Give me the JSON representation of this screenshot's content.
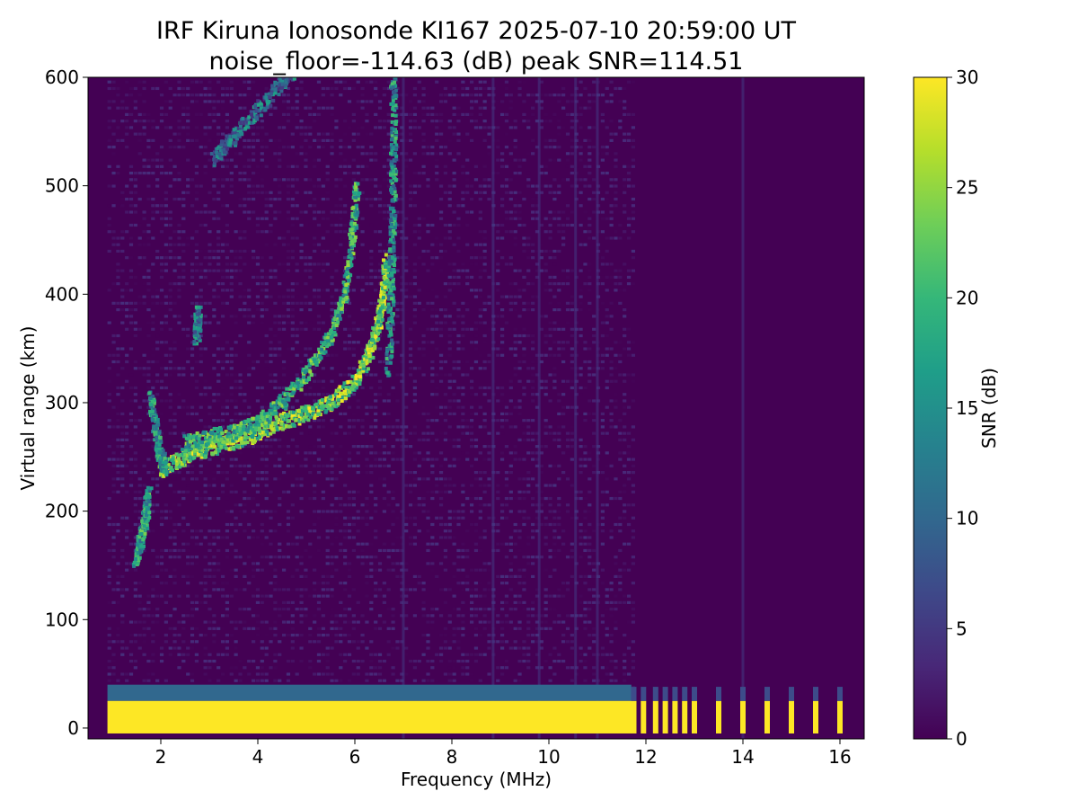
{
  "chart_data": {
    "type": "heatmap",
    "title_line1": "IRF Kiruna Ionosonde KI167 2025-07-10 20:59:00  UT",
    "title_line2": "noise_floor=-114.63 (dB) peak SNR=114.51",
    "xlabel": "Frequency (MHz)",
    "ylabel": "Virtual range (km)",
    "colorbar_label": "SNR (dB)",
    "xlim": [
      0.5,
      16.5
    ],
    "ylim": [
      -10,
      600
    ],
    "x_ticks": [
      2,
      4,
      6,
      8,
      10,
      12,
      14,
      16
    ],
    "x_tick_labels": [
      "2",
      "4",
      "6",
      "8",
      "10",
      "12",
      "14",
      "16"
    ],
    "y_ticks": [
      0,
      100,
      200,
      300,
      400,
      500,
      600
    ],
    "y_tick_labels": [
      "0",
      "100",
      "200",
      "300",
      "400",
      "500",
      "600"
    ],
    "clim": [
      0,
      30
    ],
    "colorbar_ticks": [
      0,
      5,
      10,
      15,
      20,
      25,
      30
    ],
    "colorbar_tick_labels": [
      "0",
      "5",
      "10",
      "15",
      "20",
      "25",
      "30"
    ],
    "colormap": "viridis",
    "colormap_stops": [
      "#440154",
      "#482878",
      "#3e4989",
      "#31688e",
      "#26828e",
      "#1f9e89",
      "#35b779",
      "#6ece58",
      "#b5de2b",
      "#fde725"
    ],
    "background_color": "#440154",
    "data_freq_range": [
      0.9,
      16.1
    ],
    "grid": false,
    "traces": [
      {
        "name_hint": "F-region O trace",
        "snr": 30,
        "points": [
          [
            2.0,
            238
          ],
          [
            2.5,
            250
          ],
          [
            3.0,
            258
          ],
          [
            3.5,
            264
          ],
          [
            4.0,
            272
          ],
          [
            4.5,
            282
          ],
          [
            5.0,
            290
          ],
          [
            5.5,
            300
          ],
          [
            6.0,
            318
          ],
          [
            6.3,
            345
          ],
          [
            6.5,
            375
          ],
          [
            6.6,
            400
          ],
          [
            6.65,
            430
          ]
        ]
      },
      {
        "name_hint": "F-region X trace",
        "snr": 26,
        "points": [
          [
            2.5,
            262
          ],
          [
            3.0,
            268
          ],
          [
            3.5,
            272
          ],
          [
            4.0,
            282
          ],
          [
            4.5,
            300
          ],
          [
            5.0,
            325
          ],
          [
            5.5,
            360
          ],
          [
            5.8,
            400
          ],
          [
            5.95,
            450
          ],
          [
            6.05,
            500
          ]
        ]
      },
      {
        "name_hint": "F-region outer trace",
        "snr": 22,
        "points": [
          [
            6.7,
            330
          ],
          [
            6.75,
            400
          ],
          [
            6.78,
            460
          ],
          [
            6.8,
            520
          ],
          [
            6.8,
            600
          ]
        ]
      },
      {
        "name_hint": "Lower cusp",
        "snr": 22,
        "points": [
          [
            1.8,
            305
          ],
          [
            1.9,
            275
          ],
          [
            2.0,
            250
          ],
          [
            2.1,
            240
          ]
        ]
      },
      {
        "name_hint": "Low frequency spread",
        "snr": 24,
        "points": [
          [
            1.5,
            155
          ],
          [
            1.6,
            175
          ],
          [
            1.7,
            195
          ],
          [
            1.75,
            215
          ]
        ]
      },
      {
        "name_hint": "Multi-hop trace",
        "snr": 18,
        "points": [
          [
            3.1,
            525
          ],
          [
            3.5,
            545
          ],
          [
            4.0,
            570
          ],
          [
            4.5,
            595
          ],
          [
            4.8,
            610
          ]
        ]
      },
      {
        "name_hint": "Short spike",
        "snr": 20,
        "points": [
          [
            2.75,
            360
          ],
          [
            2.78,
            385
          ]
        ]
      }
    ],
    "ground_band": {
      "freq_range": [
        0.9,
        11.7
      ],
      "range_km": [
        -5,
        25
      ],
      "snr": 30
    },
    "discrete_channels": [
      11.75,
      11.95,
      12.2,
      12.4,
      12.6,
      12.8,
      13.0,
      13.5,
      14.0,
      14.5,
      15.0,
      15.5,
      16.0
    ],
    "vertical_streaks": [
      8.85,
      10.55,
      14.0,
      7.0,
      9.8,
      11.0
    ]
  }
}
